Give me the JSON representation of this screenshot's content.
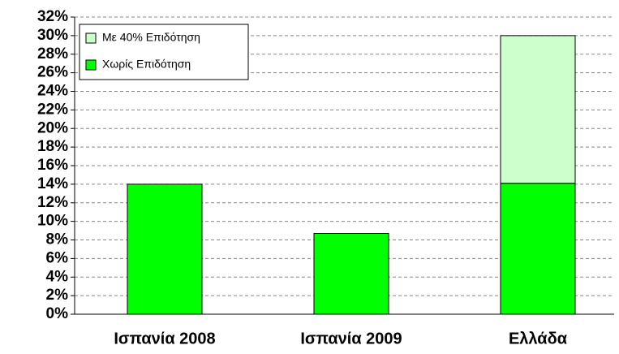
{
  "chart_data": {
    "type": "stacked_bar",
    "categories": [
      "Ισπανία 2008",
      "Ισπανία 2009",
      "Ελλάδα"
    ],
    "series": [
      {
        "name": "Χωρίς Επιδότηση",
        "color": "#00ff00",
        "values": [
          14,
          8.7,
          14.1
        ]
      },
      {
        "name": "Με 40% Επιδότηση",
        "color": "#ccffcc",
        "values": [
          null,
          null,
          15.9
        ]
      }
    ],
    "ylim": [
      0,
      32
    ],
    "yticks": [
      {
        "value": 0,
        "label": "0%"
      },
      {
        "value": 2,
        "label": "2%"
      },
      {
        "value": 4,
        "label": "4%"
      },
      {
        "value": 6,
        "label": "6%"
      },
      {
        "value": 8,
        "label": "8%"
      },
      {
        "value": 10,
        "label": "10%"
      },
      {
        "value": 12,
        "label": "12%"
      },
      {
        "value": 14,
        "label": "14%"
      },
      {
        "value": 16,
        "label": "16%"
      },
      {
        "value": 18,
        "label": "18%"
      },
      {
        "value": 20,
        "label": "20%"
      },
      {
        "value": 22,
        "label": "22%"
      },
      {
        "value": 24,
        "label": "24%"
      },
      {
        "value": 26,
        "label": "26%"
      },
      {
        "value": 28,
        "label": "28%"
      },
      {
        "value": 30,
        "label": "30%"
      },
      {
        "value": 32,
        "label": "32%"
      }
    ],
    "grid": true,
    "legend": "upper-left"
  }
}
